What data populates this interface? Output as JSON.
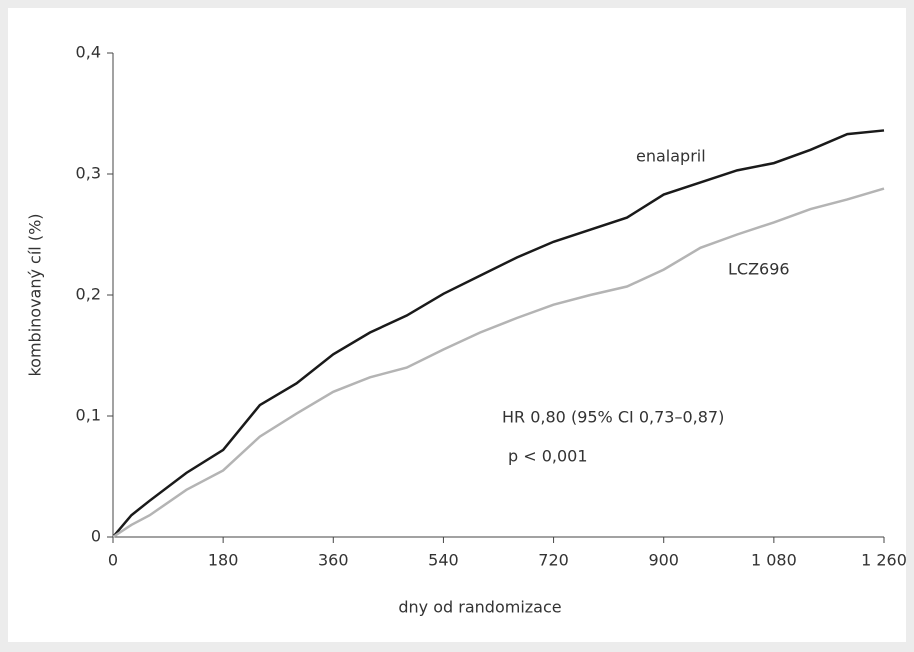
{
  "chart_data": {
    "type": "line",
    "x_label": "dny od randomizace",
    "y_label": "kombinovaný cíl (%)",
    "annotations": [
      "HR 0,80 (95% CI 0,73–0,87)",
      "p < 0,001"
    ],
    "x": [
      0,
      30,
      60,
      120,
      180,
      240,
      300,
      360,
      420,
      480,
      540,
      600,
      660,
      720,
      780,
      840,
      900,
      960,
      1020,
      1080,
      1140,
      1200,
      1260
    ],
    "series": [
      {
        "name": "enalapril",
        "color": "#1a1a1a",
        "values": [
          0,
          0.018,
          0.03,
          0.053,
          0.072,
          0.109,
          0.127,
          0.151,
          0.169,
          0.183,
          0.201,
          0.216,
          0.231,
          0.244,
          0.254,
          0.264,
          0.283,
          0.293,
          0.303,
          0.309,
          0.32,
          0.333,
          0.336
        ]
      },
      {
        "name": "LCZ696",
        "color": "#b4b4b4",
        "values": [
          0,
          0.01,
          0.018,
          0.039,
          0.055,
          0.083,
          0.102,
          0.12,
          0.132,
          0.14,
          0.155,
          0.169,
          0.181,
          0.192,
          0.2,
          0.207,
          0.221,
          0.239,
          0.25,
          0.26,
          0.271,
          0.279,
          0.288
        ]
      }
    ],
    "xlim": [
      0,
      1260
    ],
    "xticks": [
      0,
      180,
      360,
      540,
      720,
      900,
      {
        "value": 1080,
        "label": "1 080"
      },
      {
        "value": 1260,
        "label": "1 260"
      }
    ],
    "ylim": [
      0,
      0.4
    ],
    "yticks": [
      0,
      {
        "value": 0.1,
        "label": "0,1"
      },
      {
        "value": 0.2,
        "label": "0,2"
      },
      {
        "value": 0.3,
        "label": "0,3"
      },
      {
        "value": 0.4,
        "label": "0,4"
      }
    ],
    "grid": false
  }
}
